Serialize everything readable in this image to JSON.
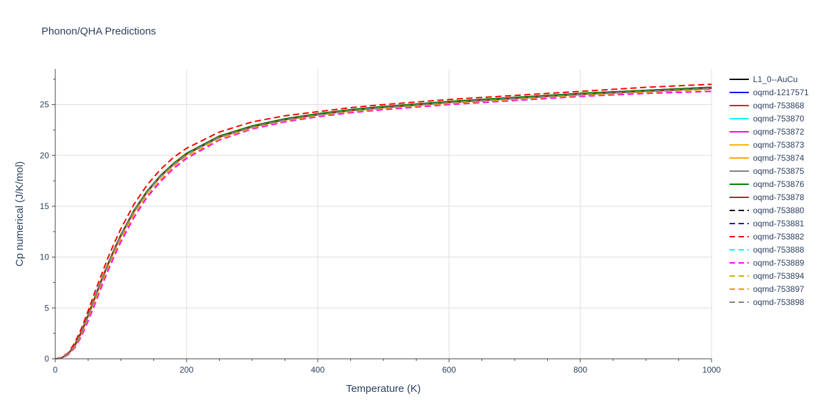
{
  "chart_data": {
    "type": "line",
    "title": "Phonon/QHA Predictions",
    "xlabel": "Temperature (K)",
    "ylabel": "Cp numerical (J/K/mol)",
    "xlim": [
      0,
      1000
    ],
    "ylim": [
      0,
      28.5
    ],
    "x_ticks": [
      0,
      200,
      400,
      600,
      800,
      1000
    ],
    "y_ticks": [
      0,
      5,
      10,
      15,
      20,
      25
    ],
    "grid": true,
    "legend_position": "right",
    "x": [
      0,
      10,
      20,
      30,
      40,
      50,
      60,
      70,
      80,
      90,
      100,
      120,
      140,
      160,
      180,
      200,
      250,
      300,
      350,
      400,
      450,
      500,
      600,
      700,
      800,
      900,
      1000
    ],
    "series": [
      {
        "name": "L1_0--AuCu",
        "color": "#000000",
        "dash": "solid",
        "values": [
          0,
          0.1,
          0.5,
          1.4,
          2.7,
          4.3,
          6.0,
          7.7,
          9.3,
          10.8,
          12.2,
          14.6,
          16.5,
          18.0,
          19.2,
          20.2,
          21.9,
          22.9,
          23.6,
          24.1,
          24.5,
          24.8,
          25.3,
          25.7,
          26.1,
          26.4,
          26.7
        ]
      },
      {
        "name": "oqmd-1217571",
        "color": "#0000ff",
        "dash": "solid",
        "values": [
          0,
          0.1,
          0.5,
          1.3,
          2.6,
          4.2,
          5.9,
          7.6,
          9.2,
          10.7,
          12.1,
          14.5,
          16.4,
          17.9,
          19.1,
          20.1,
          21.8,
          22.8,
          23.5,
          24.0,
          24.4,
          24.7,
          25.2,
          25.6,
          26.0,
          26.3,
          26.6
        ]
      },
      {
        "name": "oqmd-753868",
        "color": "#ff0000",
        "dash": "solid",
        "values": [
          0,
          0.1,
          0.5,
          1.4,
          2.7,
          4.3,
          6.0,
          7.7,
          9.3,
          10.8,
          12.2,
          14.6,
          16.5,
          18.0,
          19.2,
          20.2,
          21.9,
          22.9,
          23.6,
          24.1,
          24.5,
          24.8,
          25.3,
          25.7,
          26.1,
          26.4,
          26.7
        ]
      },
      {
        "name": "oqmd-753870",
        "color": "#00ffff",
        "dash": "solid",
        "values": [
          0,
          0.1,
          0.5,
          1.3,
          2.6,
          4.2,
          5.9,
          7.6,
          9.2,
          10.7,
          12.1,
          14.5,
          16.4,
          17.9,
          19.1,
          20.1,
          21.8,
          22.8,
          23.5,
          24.0,
          24.4,
          24.7,
          25.2,
          25.6,
          26.0,
          26.3,
          26.6
        ]
      },
      {
        "name": "oqmd-753872",
        "color": "#ff00ff",
        "dash": "solid",
        "values": [
          0,
          0.1,
          0.5,
          1.3,
          2.6,
          4.2,
          5.9,
          7.6,
          9.2,
          10.7,
          12.1,
          14.5,
          16.4,
          17.9,
          19.1,
          20.1,
          21.8,
          22.8,
          23.5,
          24.0,
          24.4,
          24.7,
          25.2,
          25.6,
          26.0,
          26.3,
          26.6
        ]
      },
      {
        "name": "oqmd-753873",
        "color": "#f5b500",
        "dash": "solid",
        "values": [
          0,
          0.1,
          0.5,
          1.3,
          2.6,
          4.2,
          5.9,
          7.6,
          9.2,
          10.7,
          12.1,
          14.5,
          16.4,
          17.9,
          19.1,
          20.1,
          21.8,
          22.8,
          23.5,
          24.0,
          24.4,
          24.7,
          25.2,
          25.6,
          26.0,
          26.3,
          26.6
        ]
      },
      {
        "name": "oqmd-753874",
        "color": "#ffa500",
        "dash": "solid",
        "values": [
          0,
          0.1,
          0.5,
          1.3,
          2.6,
          4.2,
          5.9,
          7.6,
          9.2,
          10.7,
          12.1,
          14.5,
          16.4,
          17.9,
          19.1,
          20.1,
          21.8,
          22.8,
          23.5,
          24.0,
          24.4,
          24.7,
          25.2,
          25.6,
          26.0,
          26.3,
          26.6
        ]
      },
      {
        "name": "oqmd-753875",
        "color": "#808080",
        "dash": "solid",
        "values": [
          0,
          0.1,
          0.5,
          1.3,
          2.6,
          4.2,
          5.9,
          7.6,
          9.2,
          10.7,
          12.1,
          14.5,
          16.4,
          17.9,
          19.1,
          20.1,
          21.8,
          22.8,
          23.5,
          24.0,
          24.4,
          24.7,
          25.2,
          25.6,
          26.0,
          26.3,
          26.6
        ]
      },
      {
        "name": "oqmd-753876",
        "color": "#008000",
        "dash": "solid",
        "values": [
          0,
          0.1,
          0.5,
          1.4,
          2.7,
          4.3,
          6.0,
          7.7,
          9.3,
          10.8,
          12.2,
          14.6,
          16.5,
          18.0,
          19.2,
          20.2,
          21.9,
          22.9,
          23.6,
          24.1,
          24.5,
          24.8,
          25.3,
          25.7,
          26.1,
          26.4,
          26.7
        ]
      },
      {
        "name": "oqmd-753878",
        "color": "#a52a2a",
        "dash": "solid",
        "values": [
          0,
          0.1,
          0.5,
          1.3,
          2.6,
          4.2,
          5.9,
          7.6,
          9.2,
          10.7,
          12.1,
          14.5,
          16.4,
          17.9,
          19.1,
          20.1,
          21.8,
          22.8,
          23.5,
          24.0,
          24.4,
          24.7,
          25.2,
          25.6,
          26.0,
          26.3,
          26.6
        ]
      },
      {
        "name": "oqmd-753880",
        "color": "#000000",
        "dash": "dash",
        "values": [
          0,
          0.1,
          0.5,
          1.3,
          2.6,
          4.2,
          5.9,
          7.6,
          9.2,
          10.7,
          12.1,
          14.5,
          16.4,
          17.9,
          19.1,
          20.1,
          21.8,
          22.8,
          23.5,
          24.0,
          24.4,
          24.7,
          25.2,
          25.6,
          26.0,
          26.3,
          26.6
        ]
      },
      {
        "name": "oqmd-753881",
        "color": "#0000ff",
        "dash": "dash",
        "values": [
          0,
          0.1,
          0.5,
          1.3,
          2.6,
          4.2,
          5.9,
          7.6,
          9.2,
          10.7,
          12.1,
          14.5,
          16.4,
          17.9,
          19.1,
          20.1,
          21.8,
          22.8,
          23.5,
          24.0,
          24.4,
          24.7,
          25.2,
          25.6,
          26.0,
          26.3,
          26.6
        ]
      },
      {
        "name": "oqmd-753882",
        "color": "#ff0000",
        "dash": "dash",
        "values": [
          0,
          0.15,
          0.6,
          1.6,
          3.0,
          4.7,
          6.5,
          8.2,
          9.9,
          11.4,
          12.8,
          15.2,
          17.1,
          18.6,
          19.8,
          20.7,
          22.3,
          23.3,
          23.9,
          24.3,
          24.7,
          25.0,
          25.5,
          25.9,
          26.3,
          26.7,
          27.0
        ]
      },
      {
        "name": "oqmd-753888",
        "color": "#00ffff",
        "dash": "dash",
        "values": [
          0,
          0.1,
          0.5,
          1.3,
          2.6,
          4.2,
          5.9,
          7.6,
          9.2,
          10.7,
          12.1,
          14.5,
          16.4,
          17.9,
          19.1,
          20.1,
          21.8,
          22.8,
          23.5,
          24.0,
          24.4,
          24.7,
          25.2,
          25.6,
          26.0,
          26.3,
          26.6
        ]
      },
      {
        "name": "oqmd-753889",
        "color": "#ff00ff",
        "dash": "dash",
        "values": [
          0,
          0.05,
          0.4,
          1.1,
          2.2,
          3.7,
          5.3,
          7.0,
          8.6,
          10.1,
          11.5,
          13.9,
          15.9,
          17.4,
          18.7,
          19.7,
          21.5,
          22.6,
          23.3,
          23.8,
          24.2,
          24.5,
          25.0,
          25.4,
          25.8,
          26.1,
          26.3
        ]
      },
      {
        "name": "oqmd-753894",
        "color": "#d4b000",
        "dash": "dash",
        "values": [
          0,
          0.1,
          0.5,
          1.3,
          2.6,
          4.2,
          5.9,
          7.6,
          9.2,
          10.7,
          12.1,
          14.5,
          16.4,
          17.9,
          19.1,
          20.1,
          21.8,
          22.8,
          23.5,
          24.0,
          24.4,
          24.7,
          25.2,
          25.6,
          26.0,
          26.3,
          26.6
        ]
      },
      {
        "name": "oqmd-753897",
        "color": "#e6a000",
        "dash": "dash",
        "values": [
          0,
          0.1,
          0.45,
          1.2,
          2.4,
          4.0,
          5.6,
          7.3,
          8.9,
          10.4,
          11.8,
          14.2,
          16.1,
          17.6,
          18.9,
          19.9,
          21.6,
          22.7,
          23.4,
          23.9,
          24.3,
          24.6,
          25.1,
          25.5,
          25.9,
          26.2,
          26.5
        ]
      },
      {
        "name": "oqmd-753898",
        "color": "#808080",
        "dash": "dash",
        "values": [
          0,
          0.1,
          0.5,
          1.3,
          2.6,
          4.2,
          5.9,
          7.6,
          9.2,
          10.7,
          12.1,
          14.5,
          16.4,
          17.9,
          19.1,
          20.1,
          21.8,
          22.8,
          23.5,
          24.0,
          24.4,
          24.7,
          25.2,
          25.6,
          26.0,
          26.3,
          26.6
        ]
      }
    ]
  }
}
